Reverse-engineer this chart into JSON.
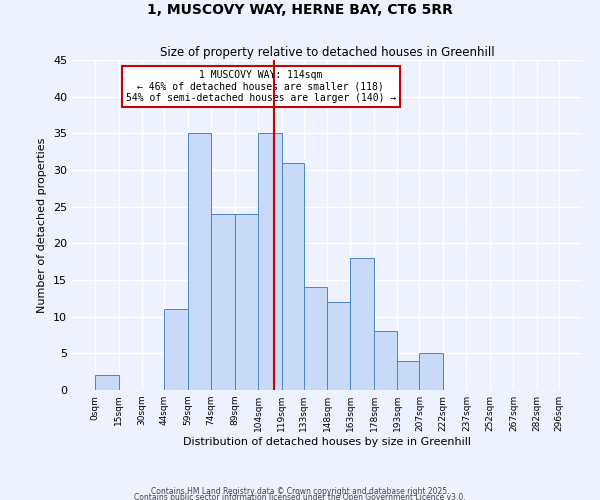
{
  "title": "1, MUSCOVY WAY, HERNE BAY, CT6 5RR",
  "subtitle": "Size of property relative to detached houses in Greenhill",
  "xlabel": "Distribution of detached houses by size in Greenhill",
  "ylabel": "Number of detached properties",
  "bin_edges": [
    0,
    15,
    30,
    44,
    59,
    74,
    89,
    104,
    119,
    133,
    148,
    163,
    178,
    193,
    207,
    222,
    237,
    252,
    267,
    282,
    296
  ],
  "bar_heights": [
    2,
    0,
    0,
    11,
    35,
    24,
    24,
    35,
    31,
    14,
    12,
    18,
    8,
    4,
    5,
    0,
    0,
    0,
    0,
    0
  ],
  "bar_color": "#c9daf8",
  "bar_edge_color": "#4a86c8",
  "tick_labels": [
    "0sqm",
    "15sqm",
    "30sqm",
    "44sqm",
    "59sqm",
    "74sqm",
    "89sqm",
    "104sqm",
    "119sqm",
    "133sqm",
    "148sqm",
    "163sqm",
    "178sqm",
    "193sqm",
    "207sqm",
    "222sqm",
    "237sqm",
    "252sqm",
    "267sqm",
    "282sqm",
    "296sqm"
  ],
  "vline_x": 114,
  "vline_color": "#cc0000",
  "ylim": [
    0,
    45
  ],
  "yticks": [
    0,
    5,
    10,
    15,
    20,
    25,
    30,
    35,
    40,
    45
  ],
  "annotation_title": "1 MUSCOVY WAY: 114sqm",
  "annotation_line1": "← 46% of detached houses are smaller (118)",
  "annotation_line2": "54% of semi-detached houses are larger (140) →",
  "bg_color": "#eef2ff",
  "grid_color": "#ffffff",
  "footer1": "Contains HM Land Registry data © Crown copyright and database right 2025.",
  "footer2": "Contains public sector information licensed under the Open Government Licence v3.0."
}
